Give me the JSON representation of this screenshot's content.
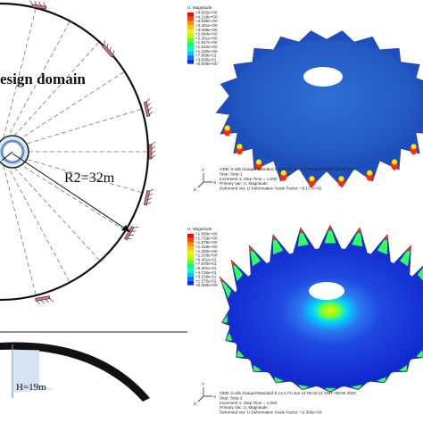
{
  "left_figure": {
    "domain_label": "esign domain",
    "radius_label": "R2=32m",
    "height_label": "H=19m"
  },
  "top_result": {
    "legend_title": "U, Magnitude",
    "legend_values": [
      "+4.602e+00",
      "+4.218e+00",
      "+3.835e+00",
      "+3.451e+00",
      "+3.068e+00",
      "+2.684e+00",
      "+2.301e+00",
      "+1.917e+00",
      "+1.534e+00",
      "+1.150e+00",
      "+7.669e-01",
      "+3.835e-01",
      "+0.000e+00"
    ],
    "info_lines": [
      "ODB: 0.odb    Abaqus/Standard 6.14-1    Fri Jun 12 09:44:12 GMT+08:00 2020",
      "Step: Step-1",
      "Increment    1: Step Time =    1.000",
      "Primary Var: U, Magnitude",
      "Deformed Var: U   Deformation Scale Factor: +9.177e+02"
    ]
  },
  "bottom_result": {
    "legend_title": "U, Magnitude",
    "legend_values": [
      "+1.890e+00",
      "+1.733e+00",
      "+1.575e+00",
      "+1.418e+00",
      "+1.260e+00",
      "+1.103e+00",
      "+9.451e-01",
      "+7.876e-01",
      "+6.301e-01",
      "+4.726e-01",
      "+3.150e-01",
      "+1.575e-01",
      "+0.000e+00"
    ],
    "info_lines": [
      "ODB: 0.odb    Abaqus/Standard 6.14-1    Fri Jun 12 09:44:12 GMT+08:00 2020",
      "Step: Step-2",
      "Increment    1: Step Time =    1.000",
      "Primary Var: U, Magnitude",
      "Deformed Var: U   Deformation Scale Factor: +2.300e+03"
    ]
  },
  "axis_labels": {
    "y": "Y",
    "z": "Z",
    "x": "X"
  },
  "contour_colors": [
    "#ff0000",
    "#ff4a00",
    "#ff9000",
    "#ffc800",
    "#f0f000",
    "#b4ff00",
    "#60ff20",
    "#00ff78",
    "#00ffd0",
    "#00c8ff",
    "#0078ff",
    "#0028ff",
    "#0000ff"
  ]
}
